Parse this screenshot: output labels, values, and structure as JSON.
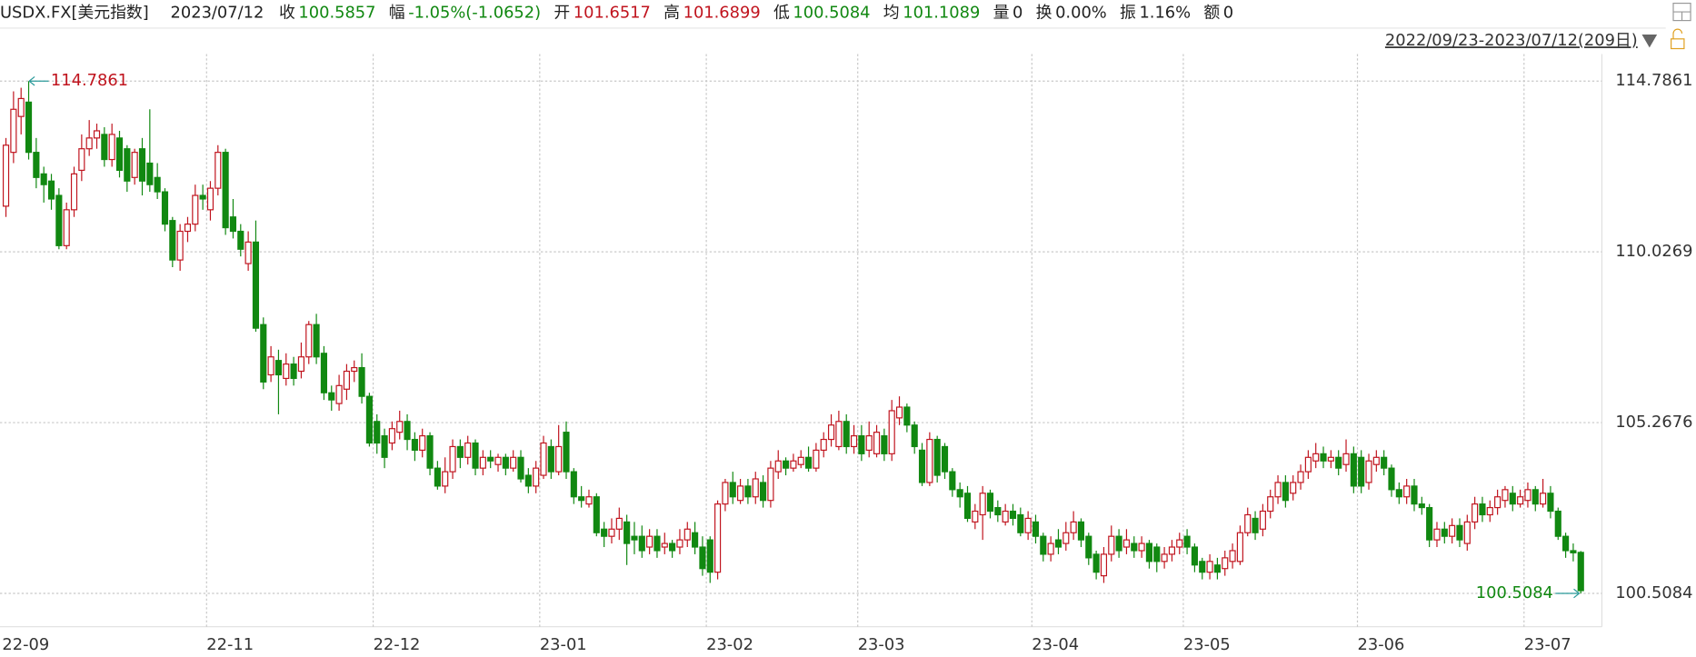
{
  "header": {
    "symbol": "USDX.FX[美元指数]",
    "date": "2023/07/12",
    "fields": [
      {
        "label": "收",
        "value": "100.5857",
        "color": "#118811"
      },
      {
        "label": "幅",
        "value": "-1.05%(-1.0652)",
        "color": "#118811"
      },
      {
        "label": "开",
        "value": "101.6517",
        "color": "#c0141e"
      },
      {
        "label": "高",
        "value": "101.6899",
        "color": "#c0141e"
      },
      {
        "label": "低",
        "value": "100.5084",
        "color": "#118811"
      },
      {
        "label": "均",
        "value": "101.1089",
        "color": "#118811"
      },
      {
        "label": "量",
        "value": "0",
        "color": "#222222"
      },
      {
        "label": "换",
        "value": "0.00%",
        "color": "#222222"
      },
      {
        "label": "振",
        "value": "1.16%",
        "color": "#222222"
      },
      {
        "label": "额",
        "value": "0",
        "color": "#222222"
      }
    ],
    "range": "2022/09/23-2023/07/12(209日)"
  },
  "chart_data": {
    "type": "candlestick",
    "up_color": "#c0141e",
    "down_color": "#118811",
    "grid": true,
    "ylim": [
      99.73,
      115.54
    ],
    "yticks": [
      114.7861,
      110.0269,
      105.2676,
      100.5084
    ],
    "categories": [
      "22-09",
      null,
      null,
      null,
      null,
      null,
      null,
      null,
      null,
      null,
      null,
      null,
      null,
      null,
      null,
      null,
      null,
      null,
      null,
      null,
      null,
      null,
      null,
      null,
      null,
      null,
      null,
      "22-11",
      null,
      null,
      null,
      null,
      null,
      null,
      null,
      null,
      null,
      null,
      null,
      null,
      null,
      null,
      null,
      null,
      null,
      null,
      null,
      null,
      null,
      "22-12",
      null,
      null,
      null,
      null,
      null,
      null,
      null,
      null,
      null,
      null,
      null,
      null,
      null,
      null,
      null,
      null,
      null,
      null,
      null,
      null,
      null,
      "23-01",
      null,
      null,
      null,
      null,
      null,
      null,
      null,
      null,
      null,
      null,
      null,
      null,
      null,
      null,
      null,
      null,
      null,
      null,
      null,
      null,
      null,
      "23-02",
      null,
      null,
      null,
      null,
      null,
      null,
      null,
      null,
      null,
      null,
      null,
      null,
      null,
      null,
      null,
      null,
      null,
      null,
      null,
      "23-03",
      null,
      null,
      null,
      null,
      null,
      null,
      null,
      null,
      null,
      null,
      null,
      null,
      null,
      null,
      null,
      null,
      null,
      null,
      null,
      null,
      null,
      null,
      "23-04",
      null,
      null,
      null,
      null,
      null,
      null,
      null,
      null,
      null,
      null,
      null,
      null,
      null,
      null,
      null,
      null,
      null,
      null,
      null,
      "23-05",
      null,
      null,
      null,
      null,
      null,
      null,
      null,
      null,
      null,
      null,
      null,
      null,
      null,
      null,
      null,
      null,
      null,
      null,
      null,
      null,
      null,
      null,
      "23-06",
      null,
      null,
      null,
      null,
      null,
      null,
      null,
      null,
      null,
      null,
      null,
      null,
      null,
      null,
      null,
      null,
      null,
      null,
      null,
      null,
      null,
      "23-07",
      null,
      null,
      null,
      null,
      null,
      null,
      null
    ],
    "ohlc": [
      [
        111.3,
        113.2,
        111.0,
        113.0
      ],
      [
        112.8,
        114.5,
        112.5,
        114.0
      ],
      [
        113.8,
        114.6,
        113.3,
        114.3
      ],
      [
        114.2,
        114.7861,
        112.6,
        112.8
      ],
      [
        112.8,
        113.2,
        111.8,
        112.1
      ],
      [
        112.2,
        112.4,
        111.4,
        111.9
      ],
      [
        112.0,
        112.2,
        111.2,
        111.5
      ],
      [
        111.6,
        111.8,
        110.1,
        110.2
      ],
      [
        110.2,
        111.4,
        110.1,
        111.2
      ],
      [
        111.2,
        112.4,
        111.0,
        112.2
      ],
      [
        112.3,
        113.3,
        112.0,
        112.9
      ],
      [
        112.9,
        113.7,
        112.7,
        113.2
      ],
      [
        113.2,
        113.6,
        112.9,
        113.4
      ],
      [
        113.3,
        113.5,
        112.4,
        112.6
      ],
      [
        112.6,
        113.6,
        112.4,
        113.3
      ],
      [
        113.2,
        113.4,
        112.1,
        112.3
      ],
      [
        112.9,
        113.0,
        111.7,
        112.0
      ],
      [
        112.1,
        112.9,
        111.9,
        112.8
      ],
      [
        112.9,
        113.2,
        111.6,
        112.0
      ],
      [
        112.5,
        114.0,
        111.7,
        111.9
      ],
      [
        112.1,
        112.5,
        111.5,
        111.7
      ],
      [
        111.7,
        111.8,
        110.6,
        110.8
      ],
      [
        110.9,
        111.0,
        109.6,
        109.8
      ],
      [
        109.8,
        110.8,
        109.5,
        110.6
      ],
      [
        110.6,
        111.0,
        110.3,
        110.8
      ],
      [
        110.8,
        111.9,
        110.6,
        111.6
      ],
      [
        111.6,
        111.9,
        111.2,
        111.5
      ],
      [
        111.2,
        112.0,
        110.9,
        111.8
      ],
      [
        111.8,
        113.0,
        111.6,
        112.8
      ],
      [
        112.8,
        112.9,
        110.5,
        110.7
      ],
      [
        111.0,
        111.5,
        110.4,
        110.6
      ],
      [
        110.6,
        110.8,
        109.9,
        110.1
      ],
      [
        109.7,
        110.6,
        109.5,
        110.3
      ],
      [
        110.3,
        110.9,
        107.8,
        107.9
      ],
      [
        108.0,
        108.2,
        106.2,
        106.4
      ],
      [
        106.6,
        107.4,
        106.4,
        107.1
      ],
      [
        107.0,
        107.3,
        105.5,
        106.6
      ],
      [
        106.5,
        107.2,
        106.3,
        106.9
      ],
      [
        106.9,
        107.1,
        106.3,
        106.5
      ],
      [
        106.7,
        107.5,
        106.5,
        107.1
      ],
      [
        107.1,
        108.1,
        106.9,
        108.0
      ],
      [
        108.0,
        108.3,
        106.9,
        107.1
      ],
      [
        107.2,
        107.4,
        105.9,
        106.1
      ],
      [
        106.1,
        106.3,
        105.6,
        105.9
      ],
      [
        105.8,
        106.6,
        105.6,
        106.3
      ],
      [
        106.2,
        106.9,
        105.9,
        106.7
      ],
      [
        106.7,
        107.0,
        106.4,
        106.8
      ],
      [
        106.8,
        107.2,
        105.8,
        106.0
      ],
      [
        106.0,
        106.1,
        104.6,
        104.7
      ],
      [
        105.3,
        105.5,
        104.4,
        104.7
      ],
      [
        104.9,
        105.1,
        104.0,
        104.3
      ],
      [
        104.7,
        105.3,
        104.5,
        105.1
      ],
      [
        105.0,
        105.6,
        104.8,
        105.3
      ],
      [
        105.3,
        105.5,
        104.5,
        104.8
      ],
      [
        104.8,
        105.0,
        104.2,
        104.5
      ],
      [
        104.5,
        105.1,
        104.3,
        104.9
      ],
      [
        104.9,
        105.0,
        103.8,
        104.0
      ],
      [
        104.0,
        104.2,
        103.4,
        103.5
      ],
      [
        103.5,
        104.3,
        103.3,
        103.9
      ],
      [
        103.9,
        104.8,
        103.7,
        104.6
      ],
      [
        104.6,
        104.8,
        104.0,
        104.3
      ],
      [
        104.3,
        104.9,
        104.1,
        104.7
      ],
      [
        104.7,
        104.8,
        103.8,
        104.0
      ],
      [
        104.0,
        104.5,
        103.8,
        104.3
      ],
      [
        104.3,
        104.5,
        104.0,
        104.2
      ],
      [
        104.1,
        104.4,
        103.9,
        104.3
      ],
      [
        104.3,
        104.4,
        103.8,
        104.0
      ],
      [
        104.0,
        104.5,
        103.9,
        104.3
      ],
      [
        104.3,
        104.5,
        103.6,
        103.7
      ],
      [
        103.8,
        104.0,
        103.3,
        103.5
      ],
      [
        103.5,
        104.2,
        103.3,
        104.0
      ],
      [
        103.8,
        104.9,
        103.7,
        104.7
      ],
      [
        104.6,
        104.8,
        103.7,
        103.9
      ],
      [
        103.9,
        105.2,
        103.8,
        104.6
      ],
      [
        105.0,
        105.3,
        103.7,
        103.9
      ],
      [
        103.9,
        104.0,
        103.0,
        103.2
      ],
      [
        103.2,
        103.5,
        102.9,
        103.1
      ],
      [
        103.0,
        103.4,
        102.9,
        103.2
      ],
      [
        103.2,
        103.3,
        102.1,
        102.2
      ],
      [
        102.3,
        102.5,
        101.8,
        102.1
      ],
      [
        102.1,
        102.6,
        101.9,
        102.3
      ],
      [
        102.3,
        102.9,
        102.0,
        102.6
      ],
      [
        102.5,
        102.7,
        101.3,
        101.9
      ],
      [
        102.1,
        102.5,
        101.6,
        102.0
      ],
      [
        102.1,
        102.4,
        101.5,
        101.7
      ],
      [
        101.8,
        102.3,
        101.6,
        102.1
      ],
      [
        102.1,
        102.3,
        101.5,
        101.7
      ],
      [
        101.8,
        102.2,
        101.6,
        101.9
      ],
      [
        101.9,
        102.0,
        101.5,
        101.7
      ],
      [
        101.8,
        102.3,
        101.6,
        102.0
      ],
      [
        102.0,
        102.5,
        101.8,
        102.3
      ],
      [
        102.2,
        102.5,
        101.6,
        101.8
      ],
      [
        101.8,
        102.1,
        101.0,
        101.2
      ],
      [
        102.0,
        102.1,
        100.8,
        101.1
      ],
      [
        101.1,
        103.1,
        100.9,
        103.0
      ],
      [
        103.0,
        103.7,
        102.8,
        103.6
      ],
      [
        103.6,
        103.9,
        103.0,
        103.2
      ],
      [
        103.1,
        103.7,
        103.0,
        103.5
      ],
      [
        103.5,
        103.7,
        103.0,
        103.2
      ],
      [
        103.2,
        103.9,
        103.0,
        103.7
      ],
      [
        103.6,
        103.8,
        102.9,
        103.1
      ],
      [
        103.1,
        104.2,
        102.9,
        104.0
      ],
      [
        103.9,
        104.5,
        103.7,
        104.2
      ],
      [
        104.2,
        104.3,
        103.8,
        104.0
      ],
      [
        104.0,
        104.4,
        103.9,
        104.2
      ],
      [
        104.1,
        104.5,
        104.0,
        104.3
      ],
      [
        104.3,
        104.6,
        103.9,
        104.0
      ],
      [
        104.0,
        104.7,
        103.9,
        104.5
      ],
      [
        104.5,
        105.0,
        104.3,
        104.8
      ],
      [
        104.8,
        105.5,
        104.6,
        105.2
      ],
      [
        104.6,
        105.6,
        104.5,
        105.3
      ],
      [
        105.3,
        105.5,
        104.4,
        104.6
      ],
      [
        104.6,
        105.2,
        104.4,
        104.9
      ],
      [
        104.9,
        105.2,
        104.2,
        104.4
      ],
      [
        104.5,
        105.3,
        104.3,
        104.9
      ],
      [
        104.4,
        105.2,
        104.3,
        105.0
      ],
      [
        104.9,
        105.1,
        104.2,
        104.4
      ],
      [
        104.4,
        105.9,
        104.2,
        105.6
      ],
      [
        105.4,
        106.0,
        105.2,
        105.7
      ],
      [
        105.7,
        105.8,
        105.0,
        105.2
      ],
      [
        105.2,
        105.3,
        104.4,
        104.6
      ],
      [
        104.5,
        104.7,
        103.5,
        103.6
      ],
      [
        103.6,
        105.0,
        103.5,
        104.8
      ],
      [
        104.8,
        104.9,
        103.6,
        103.8
      ],
      [
        104.6,
        104.7,
        103.7,
        103.9
      ],
      [
        103.9,
        104.0,
        103.2,
        103.4
      ],
      [
        103.4,
        103.6,
        102.9,
        103.2
      ],
      [
        103.3,
        103.5,
        102.5,
        102.6
      ],
      [
        102.5,
        103.0,
        102.3,
        102.8
      ],
      [
        102.7,
        103.5,
        102.0,
        103.3
      ],
      [
        103.3,
        103.4,
        102.6,
        102.8
      ],
      [
        102.9,
        103.1,
        102.5,
        102.7
      ],
      [
        102.5,
        103.0,
        102.4,
        102.8
      ],
      [
        102.8,
        103.0,
        102.4,
        102.6
      ],
      [
        102.7,
        102.9,
        102.1,
        102.2
      ],
      [
        102.2,
        102.8,
        102.0,
        102.6
      ],
      [
        102.5,
        102.7,
        101.9,
        102.1
      ],
      [
        102.1,
        102.2,
        101.4,
        101.6
      ],
      [
        101.6,
        102.1,
        101.4,
        101.9
      ],
      [
        102.0,
        102.3,
        101.6,
        101.8
      ],
      [
        101.9,
        102.5,
        101.7,
        102.2
      ],
      [
        102.2,
        102.8,
        102.0,
        102.5
      ],
      [
        102.5,
        102.6,
        101.8,
        102.0
      ],
      [
        102.1,
        102.2,
        101.3,
        101.5
      ],
      [
        101.6,
        101.7,
        100.9,
        101.1
      ],
      [
        101.0,
        101.8,
        100.8,
        101.6
      ],
      [
        101.6,
        102.4,
        101.4,
        102.1
      ],
      [
        102.1,
        102.3,
        101.5,
        101.7
      ],
      [
        101.8,
        102.3,
        101.6,
        102.0
      ],
      [
        101.9,
        102.1,
        101.5,
        101.7
      ],
      [
        101.7,
        102.1,
        101.5,
        101.9
      ],
      [
        101.9,
        102.0,
        101.2,
        101.4
      ],
      [
        101.8,
        101.9,
        101.1,
        101.4
      ],
      [
        101.4,
        101.8,
        101.2,
        101.6
      ],
      [
        101.6,
        102.0,
        101.4,
        101.8
      ],
      [
        101.8,
        102.2,
        101.6,
        102.0
      ],
      [
        102.1,
        102.3,
        101.6,
        101.8
      ],
      [
        101.8,
        101.9,
        101.1,
        101.3
      ],
      [
        101.4,
        101.5,
        100.9,
        101.1
      ],
      [
        101.1,
        101.6,
        100.9,
        101.4
      ],
      [
        101.3,
        101.5,
        100.9,
        101.1
      ],
      [
        101.2,
        101.7,
        101.0,
        101.5
      ],
      [
        101.4,
        101.9,
        101.2,
        101.7
      ],
      [
        101.4,
        102.4,
        101.3,
        102.2
      ],
      [
        102.2,
        102.9,
        102.1,
        102.7
      ],
      [
        102.6,
        102.8,
        102.0,
        102.2
      ],
      [
        102.3,
        103.0,
        102.1,
        102.8
      ],
      [
        102.8,
        103.4,
        102.6,
        103.2
      ],
      [
        103.2,
        103.8,
        103.0,
        103.6
      ],
      [
        103.6,
        103.8,
        102.9,
        103.1
      ],
      [
        103.3,
        103.8,
        103.1,
        103.6
      ],
      [
        103.6,
        104.1,
        103.4,
        103.9
      ],
      [
        103.9,
        104.5,
        103.7,
        104.3
      ],
      [
        104.2,
        104.7,
        104.0,
        104.4
      ],
      [
        104.4,
        104.6,
        104.0,
        104.2
      ],
      [
        104.2,
        104.5,
        104.0,
        104.3
      ],
      [
        104.3,
        104.5,
        103.8,
        104.0
      ],
      [
        104.1,
        104.8,
        103.9,
        104.4
      ],
      [
        104.4,
        104.6,
        103.3,
        103.5
      ],
      [
        104.3,
        104.5,
        103.3,
        103.5
      ],
      [
        103.6,
        104.4,
        103.4,
        104.2
      ],
      [
        104.1,
        104.5,
        103.9,
        104.3
      ],
      [
        104.3,
        104.5,
        103.8,
        104.0
      ],
      [
        104.0,
        104.1,
        103.2,
        103.4
      ],
      [
        103.4,
        103.6,
        103.0,
        103.2
      ],
      [
        103.2,
        103.7,
        103.0,
        103.5
      ],
      [
        103.5,
        103.7,
        102.8,
        103.0
      ],
      [
        103.0,
        103.2,
        102.7,
        102.9
      ],
      [
        102.9,
        103.0,
        101.8,
        102.0
      ],
      [
        102.0,
        102.5,
        101.8,
        102.3
      ],
      [
        102.3,
        102.5,
        101.9,
        102.1
      ],
      [
        102.1,
        102.6,
        101.9,
        102.4
      ],
      [
        102.4,
        102.6,
        101.8,
        102.0
      ],
      [
        101.9,
        102.7,
        101.7,
        102.5
      ],
      [
        102.5,
        103.2,
        102.3,
        103.0
      ],
      [
        103.0,
        103.2,
        102.5,
        102.7
      ],
      [
        102.7,
        103.1,
        102.5,
        102.9
      ],
      [
        102.9,
        103.4,
        102.7,
        103.2
      ],
      [
        103.1,
        103.5,
        102.9,
        103.4
      ],
      [
        103.3,
        103.5,
        102.8,
        103.0
      ],
      [
        103.0,
        103.4,
        102.9,
        103.2
      ],
      [
        103.1,
        103.6,
        102.9,
        103.4
      ],
      [
        103.4,
        103.5,
        102.8,
        103.0
      ],
      [
        103.0,
        103.7,
        102.9,
        103.3
      ],
      [
        103.3,
        103.5,
        102.6,
        102.8
      ],
      [
        102.8,
        102.9,
        102.0,
        102.1
      ],
      [
        102.1,
        102.2,
        101.5,
        101.7
      ],
      [
        101.7,
        101.9,
        101.4,
        101.64
      ],
      [
        101.6517,
        101.6899,
        100.5084,
        100.5857
      ]
    ]
  }
}
